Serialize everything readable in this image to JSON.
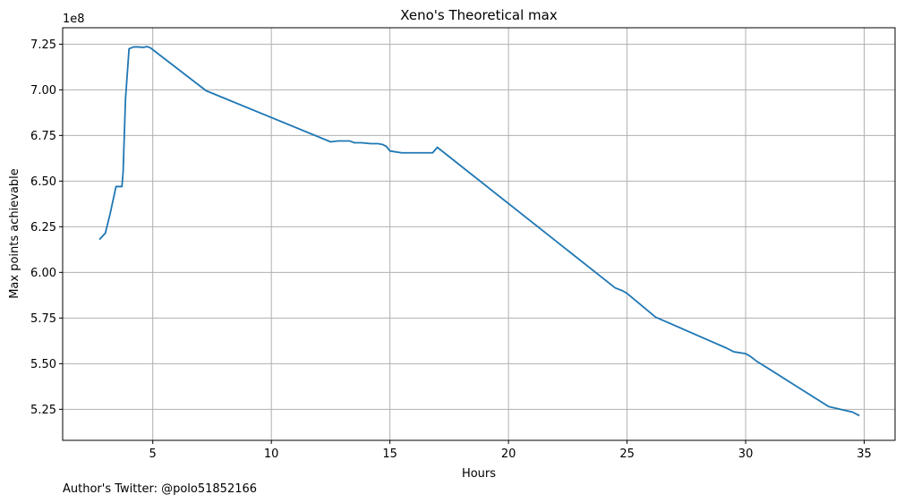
{
  "chart_data": {
    "type": "line",
    "title": "Xeno's Theoretical max",
    "xlabel": "Hours",
    "ylabel": "Max points achievable",
    "y_offset_label": "1e8",
    "xlim": [
      1.2,
      36.3
    ],
    "ylim": [
      5.08,
      7.34
    ],
    "x_ticks": [
      5,
      10,
      15,
      20,
      25,
      30,
      35
    ],
    "y_ticks": [
      5.25,
      5.5,
      5.75,
      6.0,
      6.25,
      6.5,
      6.75,
      7.0,
      7.25
    ],
    "y_tick_labels": [
      "5.25",
      "5.50",
      "5.75",
      "6.00",
      "6.25",
      "6.50",
      "6.75",
      "7.00",
      "7.25"
    ],
    "grid": true,
    "line_color": "#1f77b4",
    "series": [
      {
        "x": [
          2.75,
          3.0,
          3.2,
          3.45,
          3.7,
          3.75,
          3.85,
          4.0,
          4.2,
          4.4,
          4.6,
          4.75,
          4.9,
          5.0,
          7.25,
          12.5,
          12.8,
          13.3,
          13.5,
          13.8,
          14.2,
          14.5,
          14.7,
          14.85,
          15.0,
          15.5,
          16.0,
          16.8,
          17.0,
          24.5,
          24.8,
          25.0,
          26.2,
          29.2,
          29.5,
          30.0,
          30.2,
          30.5,
          31.0,
          33.5,
          34.0,
          34.5,
          34.8
        ],
        "y": [
          6.18,
          6.215,
          6.32,
          6.47,
          6.47,
          6.55,
          6.95,
          7.225,
          7.235,
          7.235,
          7.232,
          7.237,
          7.23,
          7.22,
          6.995,
          6.715,
          6.72,
          6.72,
          6.71,
          6.71,
          6.705,
          6.705,
          6.7,
          6.69,
          6.665,
          6.655,
          6.655,
          6.655,
          6.685,
          5.915,
          5.9,
          5.885,
          5.755,
          5.585,
          5.565,
          5.555,
          5.54,
          5.51,
          5.47,
          5.265,
          5.25,
          5.235,
          5.215
        ]
      }
    ]
  },
  "footer": {
    "author_text": "Author's Twitter: @polo51852166"
  }
}
